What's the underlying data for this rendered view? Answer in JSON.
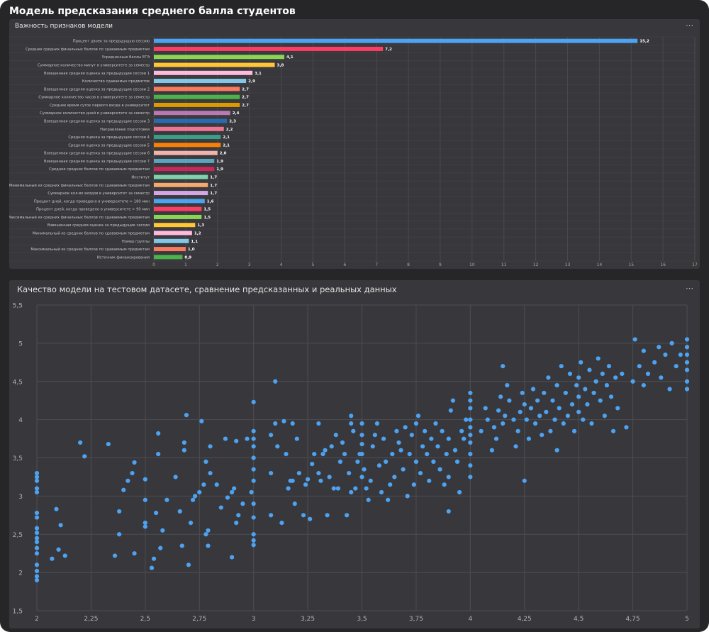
{
  "page": {
    "title": "Модель предсказания среднего балла студентов"
  },
  "panels": [
    {
      "title": "Важность признаков модели",
      "menu": "⋯"
    },
    {
      "title": "Качество модели на тестовом датасете, сравнение предсказанных и реальных данных",
      "menu": "⋯"
    }
  ],
  "chart_data": [
    {
      "type": "bar",
      "orientation": "horizontal",
      "title": "Важность признаков модели",
      "categories": [
        "Процент двоек за предыдущую сессию",
        "Среднее средних финальных баллов по сдаваемым предметам",
        "Усредненные баллы ЕГЭ",
        "Суммарное количество минут в университете за семестр",
        "Взвешенная средняя оценка за предыдущие сессии 1",
        "Количество сдаваемых предметов",
        "Взвешенная средняя оценка за предыдущие сессии 2",
        "Суммарное количество часов в университете за семестр",
        "Среднее время суток первого входа в университет",
        "Суммарное количество дней в университете за семестр",
        "Взвешенная средняя оценка за предыдущие сессии 3",
        "Направление подготовки",
        "Средняя оценка за предыдущие сессии 4",
        "Средняя оценка за предыдущие сессии 5",
        "Взвешенная средняя оценка за предыдущие сессии 6",
        "Взвешенная средняя оценка за предыдущие сессии 7",
        "Среднее средних баллов по сдаваемым предметам",
        "Институт",
        "Минимальный из средних финальных баллов по сдаваемым предметам",
        "Суммарное кол-во входов в университет за семестр",
        "Процент дней, когда проведено в университете > 180 мин",
        "Процент дней, когда проведено в университете > 90 мин",
        "Максимальный из средних финальных баллов по сдаваемым предметам",
        "Взвешенная средняя оценка за предыдущие сессии",
        "Минимальный из средних баллов по сдаваемым предметам",
        "Номер группы",
        "Максимальный из средних баллов по сдаваемым предметам",
        "Источник финансирования"
      ],
      "values": [
        15.2,
        7.2,
        4.1,
        3.8,
        3.1,
        2.9,
        2.7,
        2.7,
        2.7,
        2.4,
        2.3,
        2.2,
        2.1,
        2.1,
        2.0,
        1.9,
        1.9,
        1.7,
        1.7,
        1.7,
        1.6,
        1.5,
        1.5,
        1.3,
        1.2,
        1.1,
        1.0,
        0.9
      ],
      "value_labels": [
        "15,2",
        "7,2",
        "4,1",
        "3,8",
        "3,1",
        "2,9",
        "2,7",
        "2,7",
        "2,7",
        "2,4",
        "2,3",
        "2,2",
        "2,1",
        "2,1",
        "2,0",
        "1,9",
        "1,9",
        "1,7",
        "1,7",
        "1,7",
        "1,6",
        "1,5",
        "1,5",
        "1,3",
        "1,2",
        "1,1",
        "1,0",
        "0,9"
      ],
      "colors": [
        "#4da2f1",
        "#ff3d64",
        "#8ad554",
        "#ffc636",
        "#ffb9dd",
        "#84c6e8",
        "#f97a5f",
        "#4db24b",
        "#dd9a00",
        "#ba79b2",
        "#2b6bad",
        "#ef7693",
        "#3b9e86",
        "#f98006",
        "#f2b3aa",
        "#5ba4be",
        "#c8285a",
        "#7fd2ab",
        "#f5a96e",
        "#d5a6e4",
        "#4da2f1",
        "#ff3d64",
        "#8ad554",
        "#ffc636",
        "#ffb9dd",
        "#84c6e8",
        "#f97a5f",
        "#4db24b"
      ],
      "xlim": [
        0,
        17
      ],
      "x_ticks": [
        0,
        1,
        2,
        3,
        4,
        5,
        6,
        7,
        8,
        9,
        10,
        11,
        12,
        13,
        14,
        15,
        16,
        17
      ],
      "grid": true
    },
    {
      "type": "scatter",
      "title": "Качество модели на тестовом датасете, сравнение предсказанных и реальных данных",
      "xlim": [
        2,
        5
      ],
      "ylim": [
        1.5,
        5.5
      ],
      "x_ticks": [
        2,
        2.25,
        2.5,
        2.75,
        3,
        3.25,
        3.5,
        3.75,
        4,
        4.25,
        4.5,
        4.75,
        5
      ],
      "x_tick_labels": [
        "2",
        "2,25",
        "2,5",
        "2,75",
        "3",
        "3,25",
        "3,5",
        "3,75",
        "4",
        "4,25",
        "4,5",
        "4,75",
        "5"
      ],
      "y_ticks": [
        1.5,
        2,
        2.5,
        3,
        3.5,
        4,
        4.5,
        5,
        5.5
      ],
      "y_tick_labels": [
        "1,5",
        "2",
        "2,5",
        "3",
        "3,5",
        "4",
        "4,5",
        "5",
        "5,5"
      ],
      "grid": true,
      "color": "#4da2f1",
      "points": [
        [
          2,
          1.9
        ],
        [
          2,
          1.95
        ],
        [
          2,
          2.02
        ],
        [
          2,
          2.1
        ],
        [
          2,
          2.25
        ],
        [
          2,
          2.32
        ],
        [
          2,
          2.4
        ],
        [
          2,
          2.45
        ],
        [
          2,
          2.52
        ],
        [
          2,
          2.58
        ],
        [
          2,
          2.72
        ],
        [
          2,
          2.78
        ],
        [
          2,
          3.05
        ],
        [
          2,
          3.1
        ],
        [
          2,
          3.2
        ],
        [
          2,
          3.25
        ],
        [
          2,
          3.3
        ],
        [
          2.07,
          2.18
        ],
        [
          2.09,
          2.83
        ],
        [
          2.1,
          2.3
        ],
        [
          2.11,
          2.62
        ],
        [
          2.13,
          2.22
        ],
        [
          2.2,
          3.7
        ],
        [
          2.22,
          3.52
        ],
        [
          2.33,
          3.68
        ],
        [
          2.36,
          2.22
        ],
        [
          2.38,
          2.5
        ],
        [
          2.38,
          2.8
        ],
        [
          2.4,
          3.08
        ],
        [
          2.42,
          3.2
        ],
        [
          2.44,
          3.3
        ],
        [
          2.45,
          3.44
        ],
        [
          2.45,
          2.25
        ],
        [
          2.5,
          2.6
        ],
        [
          2.5,
          2.95
        ],
        [
          2.5,
          3.22
        ],
        [
          2.5,
          2.65
        ],
        [
          2.53,
          2.06
        ],
        [
          2.54,
          2.18
        ],
        [
          2.55,
          2.78
        ],
        [
          2.56,
          3.55
        ],
        [
          2.56,
          3.82
        ],
        [
          2.57,
          2.32
        ],
        [
          2.58,
          2.55
        ],
        [
          2.6,
          2.95
        ],
        [
          2.64,
          3.25
        ],
        [
          2.66,
          2.8
        ],
        [
          2.67,
          2.35
        ],
        [
          2.68,
          3.7
        ],
        [
          2.68,
          3.6
        ],
        [
          2.69,
          4.06
        ],
        [
          2.7,
          2.1
        ],
        [
          2.71,
          2.65
        ],
        [
          2.72,
          2.95
        ],
        [
          2.73,
          3.0
        ],
        [
          2.75,
          3.05
        ],
        [
          2.76,
          3.98
        ],
        [
          2.77,
          3.15
        ],
        [
          2.78,
          3.45
        ],
        [
          2.78,
          2.5
        ],
        [
          2.79,
          2.55
        ],
        [
          2.79,
          2.35
        ],
        [
          2.8,
          3.65
        ],
        [
          2.8,
          3.3
        ],
        [
          2.83,
          3.15
        ],
        [
          2.85,
          2.85
        ],
        [
          2.87,
          3.75
        ],
        [
          2.88,
          2.98
        ],
        [
          2.9,
          3.05
        ],
        [
          2.9,
          2.2
        ],
        [
          2.91,
          3.1
        ],
        [
          2.92,
          3.72
        ],
        [
          2.92,
          2.65
        ],
        [
          2.93,
          2.75
        ],
        [
          2.95,
          2.9
        ],
        [
          2.97,
          3.75
        ],
        [
          2.99,
          3.05
        ],
        [
          3,
          3.2
        ],
        [
          3,
          3.35
        ],
        [
          3,
          3.5
        ],
        [
          3,
          3.65
        ],
        [
          3,
          3.75
        ],
        [
          3,
          3.85
        ],
        [
          3,
          4.23
        ],
        [
          3,
          2.36
        ],
        [
          3,
          2.42
        ],
        [
          3,
          2.5
        ],
        [
          3,
          2.72
        ],
        [
          3,
          2.9
        ],
        [
          3.08,
          2.75
        ],
        [
          3.08,
          3.3
        ],
        [
          3.08,
          3.8
        ],
        [
          3.1,
          4.5
        ],
        [
          3.1,
          3.95
        ],
        [
          3.11,
          3.65
        ],
        [
          3.13,
          2.65
        ],
        [
          3.14,
          3.98
        ],
        [
          3.15,
          3.55
        ],
        [
          3.16,
          3.1
        ],
        [
          3.17,
          3.2
        ],
        [
          3.18,
          3.2
        ],
        [
          3.18,
          3.95
        ],
        [
          3.19,
          2.9
        ],
        [
          3.2,
          3.75
        ],
        [
          3.21,
          3.3
        ],
        [
          3.23,
          2.75
        ],
        [
          3.24,
          3.15
        ],
        [
          3.25,
          3.22
        ],
        [
          3.26,
          2.7
        ],
        [
          3.27,
          3.42
        ],
        [
          3.28,
          3.55
        ],
        [
          3.3,
          3.3
        ],
        [
          3.3,
          3.95
        ],
        [
          3.31,
          3.2
        ],
        [
          3.32,
          3.55
        ],
        [
          3.33,
          3.6
        ],
        [
          3.34,
          2.75
        ],
        [
          3.35,
          3.25
        ],
        [
          3.36,
          3.65
        ],
        [
          3.37,
          3.1
        ],
        [
          3.38,
          3.8
        ],
        [
          3.39,
          3.1
        ],
        [
          3.4,
          3.45
        ],
        [
          3.41,
          3.7
        ],
        [
          3.42,
          3.55
        ],
        [
          3.43,
          2.75
        ],
        [
          3.44,
          3.3
        ],
        [
          3.45,
          3.95
        ],
        [
          3.45,
          3.05
        ],
        [
          3.45,
          4.05
        ],
        [
          3.46,
          3.85
        ],
        [
          3.47,
          3.1
        ],
        [
          3.48,
          3.45
        ],
        [
          3.49,
          3.55
        ],
        [
          3.5,
          3.25
        ],
        [
          3.5,
          3.55
        ],
        [
          3.5,
          3.68
        ],
        [
          3.5,
          3.8
        ],
        [
          3.5,
          3.95
        ],
        [
          3.51,
          3.35
        ],
        [
          3.52,
          3.1
        ],
        [
          3.53,
          2.95
        ],
        [
          3.54,
          3.2
        ],
        [
          3.55,
          3.65
        ],
        [
          3.56,
          3.8
        ],
        [
          3.57,
          3.95
        ],
        [
          3.58,
          3.4
        ],
        [
          3.59,
          3.05
        ],
        [
          3.6,
          3.75
        ],
        [
          3.61,
          3.45
        ],
        [
          3.62,
          2.95
        ],
        [
          3.63,
          3.15
        ],
        [
          3.64,
          3.55
        ],
        [
          3.65,
          3.25
        ],
        [
          3.66,
          3.85
        ],
        [
          3.67,
          3.7
        ],
        [
          3.68,
          3.6
        ],
        [
          3.69,
          3.35
        ],
        [
          3.7,
          3.9
        ],
        [
          3.71,
          3.0
        ],
        [
          3.72,
          3.55
        ],
        [
          3.73,
          3.8
        ],
        [
          3.74,
          3.15
        ],
        [
          3.75,
          3.45
        ],
        [
          3.75,
          3.95
        ],
        [
          3.76,
          4.05
        ],
        [
          3.77,
          3.3
        ],
        [
          3.78,
          3.65
        ],
        [
          3.79,
          3.85
        ],
        [
          3.8,
          3.55
        ],
        [
          3.81,
          3.2
        ],
        [
          3.82,
          3.75
        ],
        [
          3.83,
          3.45
        ],
        [
          3.84,
          3.95
        ],
        [
          3.85,
          3.65
        ],
        [
          3.86,
          3.35
        ],
        [
          3.87,
          3.85
        ],
        [
          3.88,
          3.15
        ],
        [
          3.89,
          3.55
        ],
        [
          3.9,
          3.25
        ],
        [
          3.9,
          2.8
        ],
        [
          3.9,
          3.75
        ],
        [
          3.91,
          4.12
        ],
        [
          3.92,
          4.25
        ],
        [
          3.93,
          3.6
        ],
        [
          3.94,
          3.45
        ],
        [
          3.95,
          3.05
        ],
        [
          3.96,
          3.85
        ],
        [
          3.97,
          3.75
        ],
        [
          3.98,
          4.0
        ],
        [
          4,
          3.25
        ],
        [
          4,
          3.4
        ],
        [
          4,
          3.55
        ],
        [
          4,
          3.7
        ],
        [
          4,
          3.8
        ],
        [
          4,
          3.9
        ],
        [
          4,
          4.0
        ],
        [
          4,
          4.15
        ],
        [
          4,
          4.25
        ],
        [
          4,
          4.35
        ],
        [
          4.05,
          3.85
        ],
        [
          4.07,
          4.15
        ],
        [
          4.08,
          4.0
        ],
        [
          4.1,
          3.6
        ],
        [
          4.11,
          3.9
        ],
        [
          4.12,
          3.75
        ],
        [
          4.13,
          4.12
        ],
        [
          4.14,
          4.3
        ],
        [
          4.15,
          4.7
        ],
        [
          4.15,
          3.95
        ],
        [
          4.16,
          4.05
        ],
        [
          4.17,
          4.45
        ],
        [
          4.18,
          4.25
        ],
        [
          4.2,
          4.0
        ],
        [
          4.21,
          3.65
        ],
        [
          4.22,
          3.85
        ],
        [
          4.23,
          4.1
        ],
        [
          4.24,
          4.35
        ],
        [
          4.25,
          4.2
        ],
        [
          4.25,
          3.2
        ],
        [
          4.26,
          4.0
        ],
        [
          4.27,
          3.75
        ],
        [
          4.28,
          4.15
        ],
        [
          4.29,
          4.4
        ],
        [
          4.3,
          3.95
        ],
        [
          4.31,
          4.25
        ],
        [
          4.32,
          4.05
        ],
        [
          4.33,
          3.8
        ],
        [
          4.34,
          4.35
        ],
        [
          4.35,
          4.1
        ],
        [
          4.36,
          4.55
        ],
        [
          4.37,
          3.85
        ],
        [
          4.38,
          4.25
        ],
        [
          4.39,
          4.0
        ],
        [
          4.4,
          4.45
        ],
        [
          4.4,
          3.6
        ],
        [
          4.41,
          4.15
        ],
        [
          4.42,
          4.7
        ],
        [
          4.43,
          3.95
        ],
        [
          4.44,
          4.35
        ],
        [
          4.45,
          4.05
        ],
        [
          4.46,
          4.6
        ],
        [
          4.47,
          4.2
        ],
        [
          4.48,
          3.85
        ],
        [
          4.49,
          4.45
        ],
        [
          4.5,
          4.1
        ],
        [
          4.5,
          4.3
        ],
        [
          4.5,
          4.55
        ],
        [
          4.51,
          4.75
        ],
        [
          4.52,
          4.0
        ],
        [
          4.53,
          4.4
        ],
        [
          4.54,
          4.2
        ],
        [
          4.55,
          4.65
        ],
        [
          4.56,
          3.95
        ],
        [
          4.57,
          4.35
        ],
        [
          4.58,
          4.5
        ],
        [
          4.59,
          4.8
        ],
        [
          4.6,
          4.25
        ],
        [
          4.61,
          4.6
        ],
        [
          4.62,
          4.05
        ],
        [
          4.63,
          4.45
        ],
        [
          4.64,
          4.7
        ],
        [
          4.65,
          4.3
        ],
        [
          4.66,
          3.85
        ],
        [
          4.67,
          4.55
        ],
        [
          4.68,
          4.15
        ],
        [
          4.7,
          4.6
        ],
        [
          4.72,
          3.9
        ],
        [
          4.75,
          4.5
        ],
        [
          4.76,
          5.05
        ],
        [
          4.78,
          4.7
        ],
        [
          4.8,
          4.45
        ],
        [
          4.8,
          4.9
        ],
        [
          4.82,
          4.6
        ],
        [
          4.85,
          4.75
        ],
        [
          4.87,
          4.95
        ],
        [
          4.88,
          4.55
        ],
        [
          4.9,
          4.85
        ],
        [
          4.92,
          4.4
        ],
        [
          4.93,
          5.0
        ],
        [
          4.95,
          4.7
        ],
        [
          4.97,
          4.85
        ],
        [
          5,
          4.4
        ],
        [
          5,
          4.5
        ],
        [
          5,
          4.65
        ],
        [
          5,
          4.75
        ],
        [
          5,
          4.85
        ],
        [
          5,
          4.95
        ],
        [
          5,
          5.05
        ]
      ]
    }
  ]
}
